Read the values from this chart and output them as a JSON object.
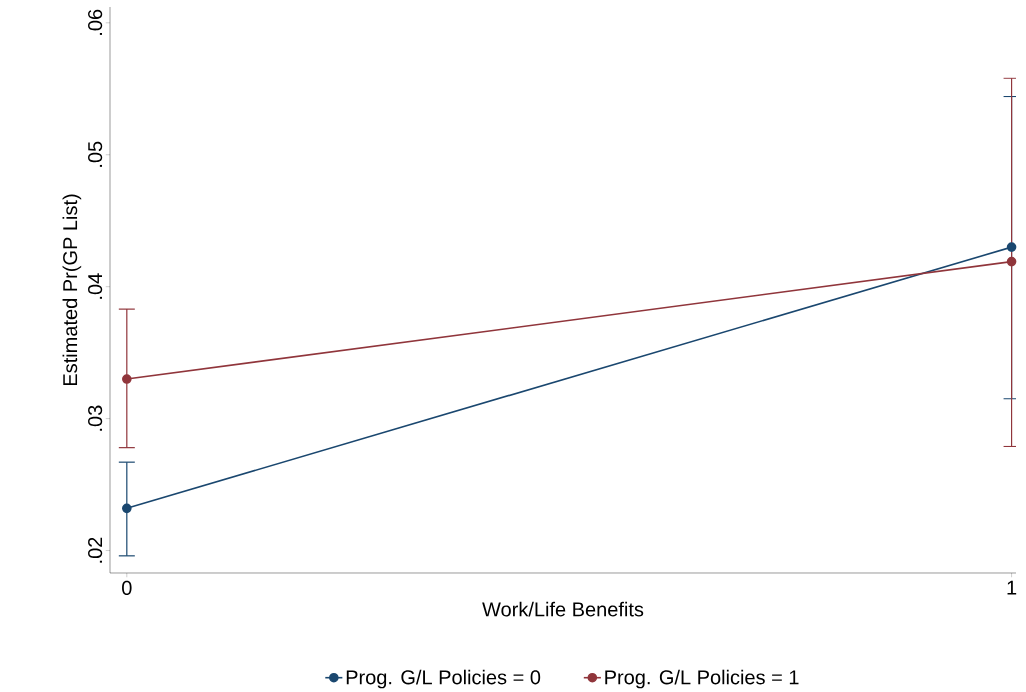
{
  "chart_data": {
    "type": "line",
    "xlabel": "Work/Life Benefits",
    "ylabel": "Estimated Pr(GP List)",
    "x": [
      0,
      1
    ],
    "xlim": [
      -0.019,
      1.005
    ],
    "xticks": [
      0,
      1
    ],
    "ylim": [
      0.0183,
      0.0612
    ],
    "yticks": [
      {
        "value": 0.02,
        "label": ".02"
      },
      {
        "value": 0.03,
        "label": ".03"
      },
      {
        "value": 0.04,
        "label": ".04"
      },
      {
        "value": 0.05,
        "label": ".05"
      },
      {
        "value": 0.06,
        "label": ".06"
      }
    ],
    "series": [
      {
        "name": "Prog. G/L Policies = 0",
        "color": "#1a476f",
        "values": [
          0.0232,
          0.043
        ],
        "errors": [
          [
            0.0196,
            0.0267
          ],
          [
            0.0315,
            0.0544
          ]
        ]
      },
      {
        "name": "Prog. G/L Policies = 1",
        "color": "#90353b",
        "values": [
          0.033,
          0.0419
        ],
        "errors": [
          [
            0.0278,
            0.0383
          ],
          [
            0.0279,
            0.0558
          ]
        ]
      }
    ],
    "marker": "circle",
    "line_style": "solid",
    "grid": false,
    "legend": "bottom"
  }
}
